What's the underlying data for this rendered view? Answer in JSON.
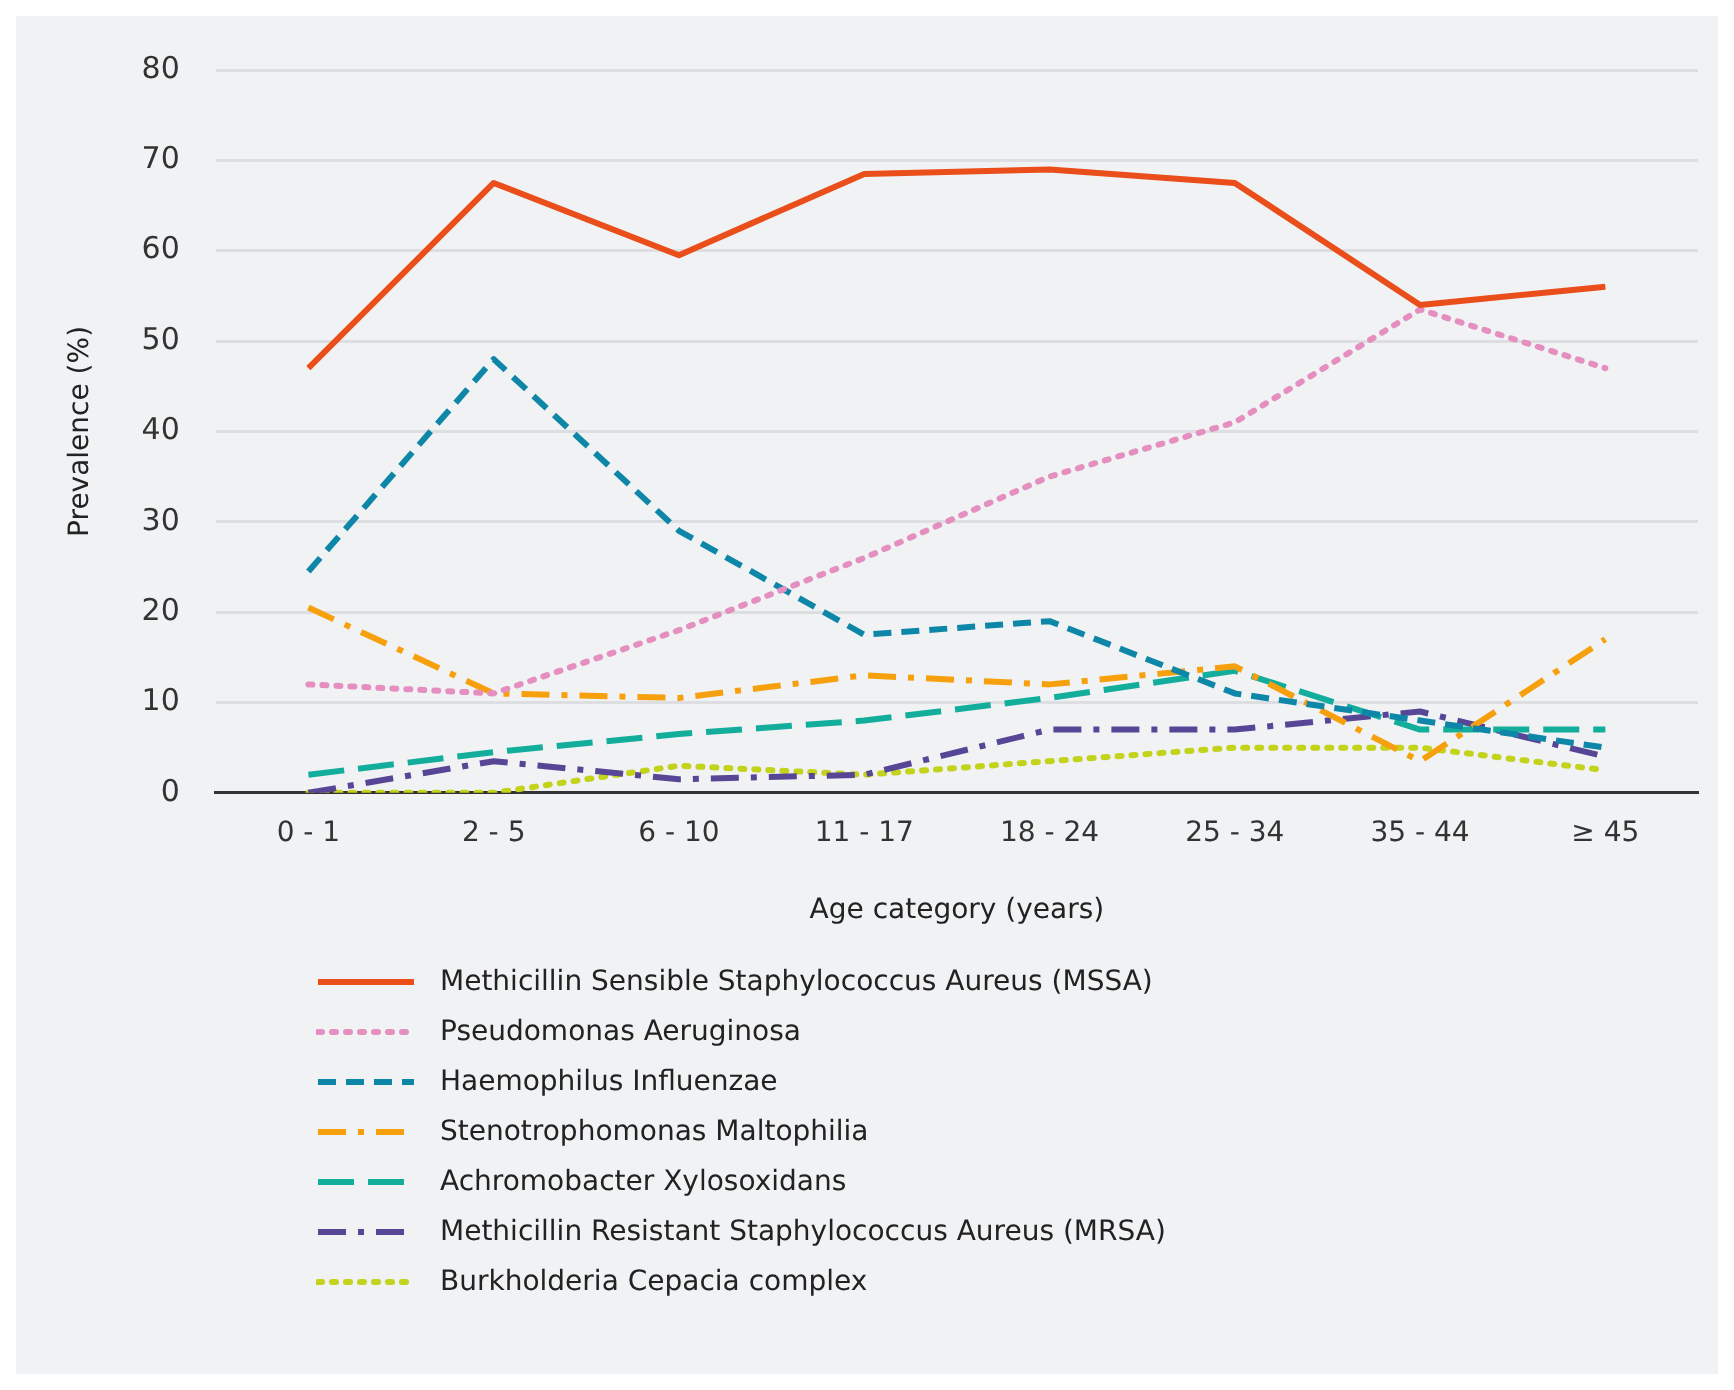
{
  "chart_data": {
    "type": "line",
    "xlabel": "Age category (years)",
    "ylabel": "Prevalence (%)",
    "categories": [
      "0 - 1",
      "2 - 5",
      "6 - 10",
      "11 - 17",
      "18 - 24",
      "25 - 34",
      "35 - 44",
      "≥ 45"
    ],
    "ylim": [
      0,
      80
    ],
    "yticks": [
      0,
      10,
      20,
      30,
      40,
      50,
      60,
      70,
      80
    ],
    "grid": "y",
    "legend": "bottom",
    "marker": "none",
    "series": [
      {
        "name": "Methicillin Sensible Staphylococcus Aureus (MSSA)",
        "color": "#e94e1b",
        "line_style": "solid",
        "values": [
          47,
          67.5,
          59.5,
          68.5,
          69,
          67.5,
          54,
          56
        ]
      },
      {
        "name": "Pseudomonas Aeruginosa",
        "color": "#e58fc1",
        "line_style": "dotted",
        "values": [
          12,
          11,
          18,
          26,
          35,
          41,
          53.5,
          47
        ]
      },
      {
        "name": "Haemophilus Influenzae",
        "color": "#0e86a8",
        "line_style": "dashed",
        "values": [
          24.5,
          48,
          29,
          17.5,
          19,
          11,
          8,
          5
        ]
      },
      {
        "name": "Stenotrophomonas Maltophilia",
        "color": "#f7a00e",
        "line_style": "dashdot",
        "values": [
          20.5,
          11,
          10.5,
          13,
          12,
          14,
          3.5,
          17
        ]
      },
      {
        "name": "Achromobacter Xylosoxidans",
        "color": "#13ad9c",
        "line_style": "longdash",
        "values": [
          2,
          4.5,
          6.5,
          8,
          10.5,
          13.5,
          7,
          7
        ]
      },
      {
        "name": "Methicillin Resistant Staphylococcus Aureus (MRSA)",
        "color": "#574696",
        "line_style": "dashdot",
        "values": [
          0,
          3.5,
          1.5,
          2,
          7,
          7,
          9,
          4
        ]
      },
      {
        "name": "Burkholderia Cepacia complex",
        "color": "#c3d21a",
        "line_style": "dotted",
        "values": [
          0,
          0,
          3,
          2,
          3.5,
          5,
          5,
          2.5
        ]
      }
    ]
  }
}
